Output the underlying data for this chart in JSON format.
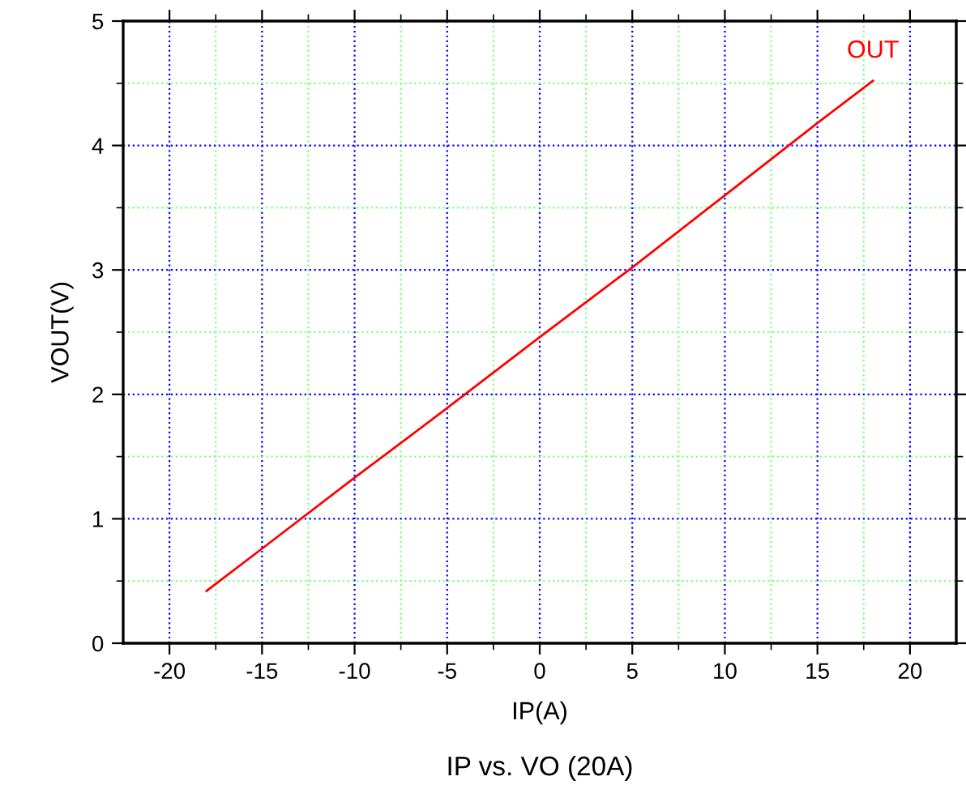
{
  "chart_data": {
    "type": "line",
    "title": "IP vs. VO (20A)",
    "xlabel": "IP(A)",
    "ylabel": "VOUT(V)",
    "x": [
      -18,
      -15,
      -10,
      -5,
      0,
      5,
      10,
      15,
      18
    ],
    "series": [
      {
        "name": "OUT",
        "color": "#ff0000",
        "values": [
          0.42,
          0.76,
          1.33,
          1.89,
          2.46,
          3.02,
          3.6,
          4.18,
          4.52
        ]
      }
    ],
    "xlim": [
      -22.5,
      22.5
    ],
    "xticks": [
      -20,
      {
        "value": -17.5,
        "label": null
      },
      -15,
      {
        "value": -12.5,
        "label": null
      },
      -10,
      {
        "value": -7.5,
        "label": null
      },
      -5,
      {
        "value": -2.5,
        "label": null
      },
      0,
      {
        "value": 2.5,
        "label": null
      },
      5,
      {
        "value": 7.5,
        "label": null
      },
      10,
      {
        "value": 12.5,
        "label": null
      },
      15,
      {
        "value": 17.5,
        "label": null
      },
      20
    ],
    "ylim": [
      0,
      5
    ],
    "yticks": [
      0,
      {
        "value": 0.5,
        "label": null
      },
      1,
      {
        "value": 1.5,
        "label": null
      },
      2,
      {
        "value": 2.5,
        "label": null
      },
      3,
      {
        "value": 3.5,
        "label": null
      },
      4,
      {
        "value": 4.5,
        "label": null
      },
      5
    ],
    "grid": true,
    "marker": "none",
    "line_style": "solid"
  }
}
